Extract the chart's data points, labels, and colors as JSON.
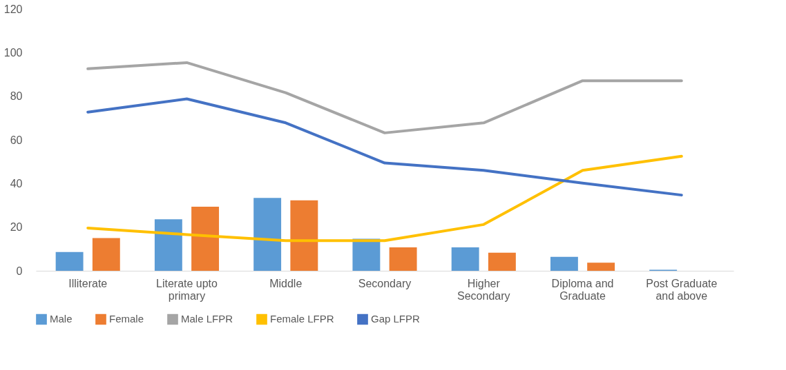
{
  "chart_data": {
    "type": "bar",
    "categories": [
      "Illiterate",
      "Literate upto primary",
      "Middle",
      "Secondary",
      "Higher Secondary",
      "Diploma and Graduate",
      "Post Graduate and above"
    ],
    "series": [
      {
        "name": "Male",
        "color": "#5b9bd5",
        "values": [
          8.6,
          23.6,
          33.4,
          14.7,
          10.7,
          6.4,
          0.5
        ]
      },
      {
        "name": "Female",
        "color": "#ed7d31",
        "values": [
          15.0,
          29.4,
          32.3,
          10.7,
          8.3,
          3.7,
          0
        ]
      },
      {
        "name": "Male LFPR",
        "type": "line",
        "color": "#a5a5a5",
        "values": [
          92.6,
          95.4,
          81.6,
          63.2,
          67.8,
          87.1,
          87.1
        ]
      },
      {
        "name": "Female LFPR",
        "type": "line",
        "color": "#ffc000",
        "values": [
          19.6,
          16.6,
          13.8,
          13.8,
          21.2,
          46.0,
          52.5
        ]
      },
      {
        "name": "Gap LFPR",
        "type": "line",
        "color": "#4472c4",
        "values": [
          72.7,
          78.8,
          67.8,
          49.4,
          46.0,
          40.2,
          34.7
        ]
      }
    ],
    "ylim": [
      0,
      120
    ],
    "yticks": [
      0,
      20,
      40,
      60,
      80,
      100,
      120
    ],
    "grid": false,
    "legend": "bottom"
  }
}
